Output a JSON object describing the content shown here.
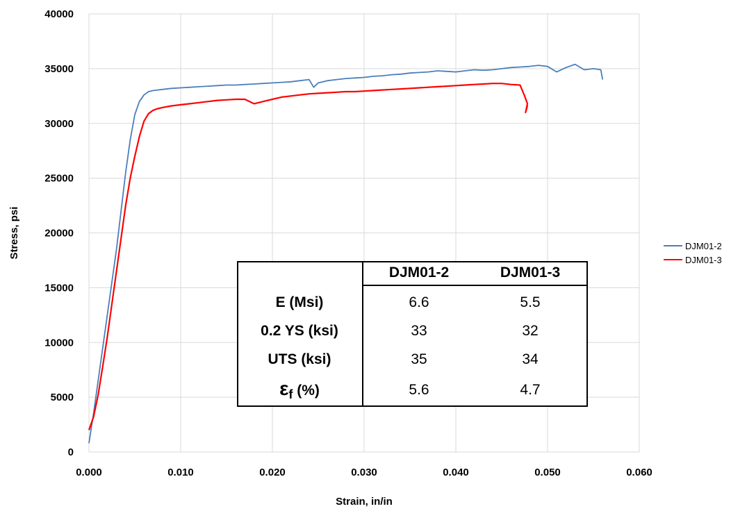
{
  "chart_data": {
    "type": "line",
    "title": "",
    "xlabel": "Strain, in/in",
    "ylabel": "Stress, psi",
    "xlim": [
      0,
      0.06
    ],
    "ylim": [
      0,
      40000
    ],
    "x_ticks": [
      "0.000",
      "0.010",
      "0.020",
      "0.030",
      "0.040",
      "0.050",
      "0.060"
    ],
    "y_ticks": [
      "0",
      "5000",
      "10000",
      "15000",
      "20000",
      "25000",
      "30000",
      "35000",
      "40000"
    ],
    "grid": true,
    "legend_position": "right",
    "series": [
      {
        "name": "DJM01-2",
        "color": "#4a7ebb",
        "x": [
          0.0,
          0.0005,
          0.001,
          0.0015,
          0.002,
          0.0025,
          0.003,
          0.0035,
          0.004,
          0.0045,
          0.005,
          0.0055,
          0.006,
          0.0065,
          0.007,
          0.0075,
          0.008,
          0.009,
          0.01,
          0.011,
          0.012,
          0.013,
          0.014,
          0.015,
          0.016,
          0.017,
          0.018,
          0.019,
          0.02,
          0.021,
          0.022,
          0.023,
          0.024,
          0.0245,
          0.025,
          0.026,
          0.027,
          0.028,
          0.029,
          0.03,
          0.031,
          0.032,
          0.033,
          0.034,
          0.035,
          0.036,
          0.037,
          0.038,
          0.039,
          0.04,
          0.041,
          0.042,
          0.043,
          0.044,
          0.045,
          0.046,
          0.047,
          0.048,
          0.049,
          0.05,
          0.051,
          0.052,
          0.053,
          0.054,
          0.055,
          0.0558,
          0.056
        ],
        "y": [
          800,
          3500,
          6500,
          9500,
          12500,
          15500,
          18500,
          22000,
          25500,
          28500,
          30800,
          32000,
          32600,
          32900,
          33000,
          33050,
          33100,
          33200,
          33250,
          33300,
          33350,
          33400,
          33450,
          33500,
          33500,
          33550,
          33600,
          33650,
          33700,
          33750,
          33800,
          33900,
          34000,
          33300,
          33700,
          33900,
          34000,
          34100,
          34150,
          34200,
          34300,
          34350,
          34450,
          34500,
          34600,
          34650,
          34700,
          34800,
          34750,
          34700,
          34800,
          34900,
          34850,
          34900,
          35000,
          35100,
          35150,
          35200,
          35300,
          35200,
          34700,
          35100,
          35400,
          34900,
          35000,
          34900,
          34000
        ]
      },
      {
        "name": "DJM01-3",
        "color": "#ff0000",
        "x": [
          0.0,
          0.0005,
          0.001,
          0.0015,
          0.002,
          0.0025,
          0.003,
          0.0035,
          0.004,
          0.0045,
          0.005,
          0.0055,
          0.006,
          0.0065,
          0.007,
          0.0075,
          0.008,
          0.009,
          0.01,
          0.011,
          0.012,
          0.013,
          0.014,
          0.015,
          0.016,
          0.017,
          0.018,
          0.019,
          0.02,
          0.021,
          0.022,
          0.023,
          0.024,
          0.025,
          0.026,
          0.027,
          0.028,
          0.029,
          0.03,
          0.031,
          0.032,
          0.033,
          0.034,
          0.035,
          0.036,
          0.037,
          0.038,
          0.039,
          0.04,
          0.041,
          0.042,
          0.043,
          0.044,
          0.045,
          0.046,
          0.047,
          0.0475,
          0.0478,
          0.0476,
          0.0478
        ],
        "y": [
          2000,
          3200,
          5200,
          7800,
          10500,
          13500,
          16500,
          19500,
          22500,
          25000,
          27000,
          28800,
          30200,
          30900,
          31200,
          31350,
          31450,
          31600,
          31700,
          31800,
          31900,
          32000,
          32100,
          32150,
          32200,
          32200,
          31800,
          32000,
          32200,
          32400,
          32500,
          32600,
          32700,
          32750,
          32800,
          32850,
          32900,
          32900,
          32950,
          33000,
          33050,
          33100,
          33150,
          33200,
          33250,
          33300,
          33350,
          33400,
          33450,
          33500,
          33550,
          33600,
          33650,
          33650,
          33550,
          33500,
          32500,
          31800,
          31000,
          31600
        ]
      }
    ]
  },
  "legend": [
    {
      "label": "DJM01-2",
      "color": "#4a7ebb"
    },
    {
      "label": "DJM01-3",
      "color": "#ff0000"
    }
  ],
  "table": {
    "columns": [
      "DJM01-2",
      "DJM01-3"
    ],
    "rows": [
      {
        "label": "E (Msi)",
        "values": [
          "6.6",
          "5.5"
        ]
      },
      {
        "label": "0.2 YS (ksi)",
        "values": [
          "33",
          "32"
        ]
      },
      {
        "label": "UTS (ksi)",
        "values": [
          "35",
          "34"
        ]
      },
      {
        "label_symbol": "ε",
        "label_subscript": "f",
        "label_rest": " (%)",
        "values": [
          "5.6",
          "4.7"
        ]
      }
    ]
  }
}
